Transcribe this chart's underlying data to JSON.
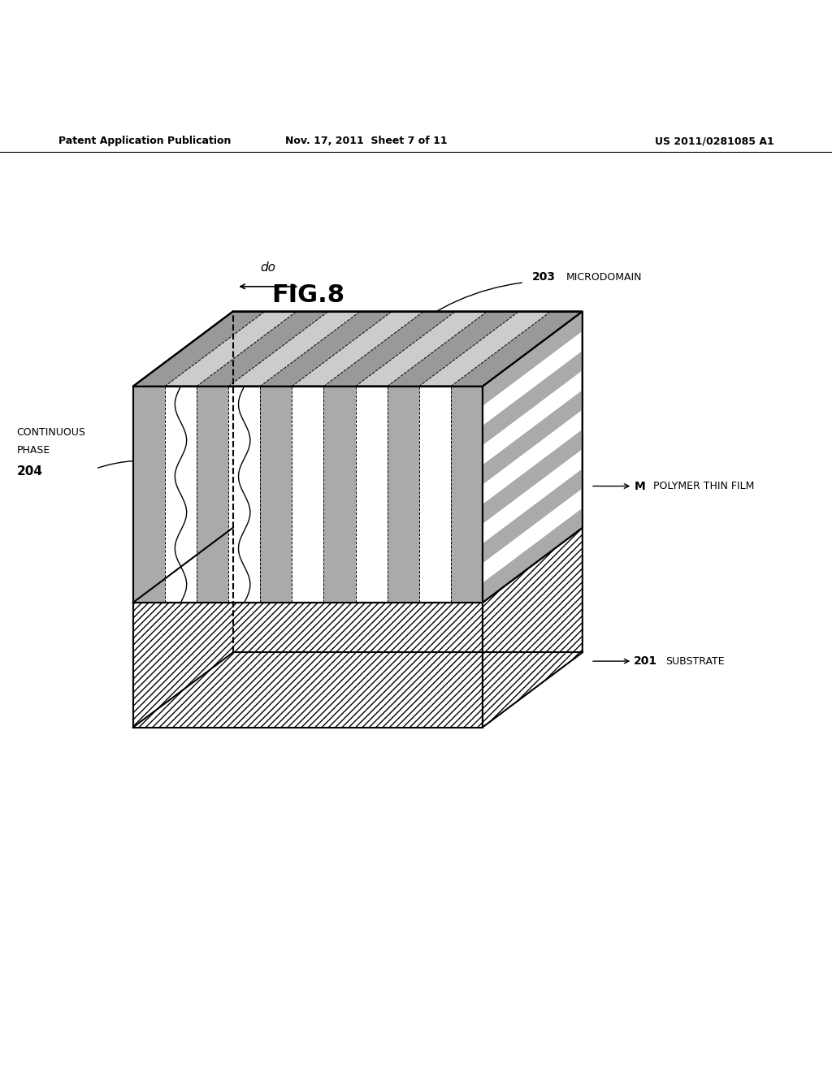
{
  "fig_label": "FIG.8",
  "header_left": "Patent Application Publication",
  "header_mid": "Nov. 17, 2011  Sheet 7 of 11",
  "header_right": "US 2011/0281085 A1",
  "bg_color": "#ffffff",
  "black": "#000000",
  "label_203": "203",
  "label_203_text": "MICRODOMAIN",
  "label_204": "204",
  "label_204_text1": "CONTINUOUS",
  "label_204_text2": "PHASE",
  "label_M": "M",
  "label_M_text": "POLYMER THIN FILM",
  "label_201": "201",
  "label_201_text": "SUBSTRATE",
  "label_do": "do",
  "n_stripes": 5
}
